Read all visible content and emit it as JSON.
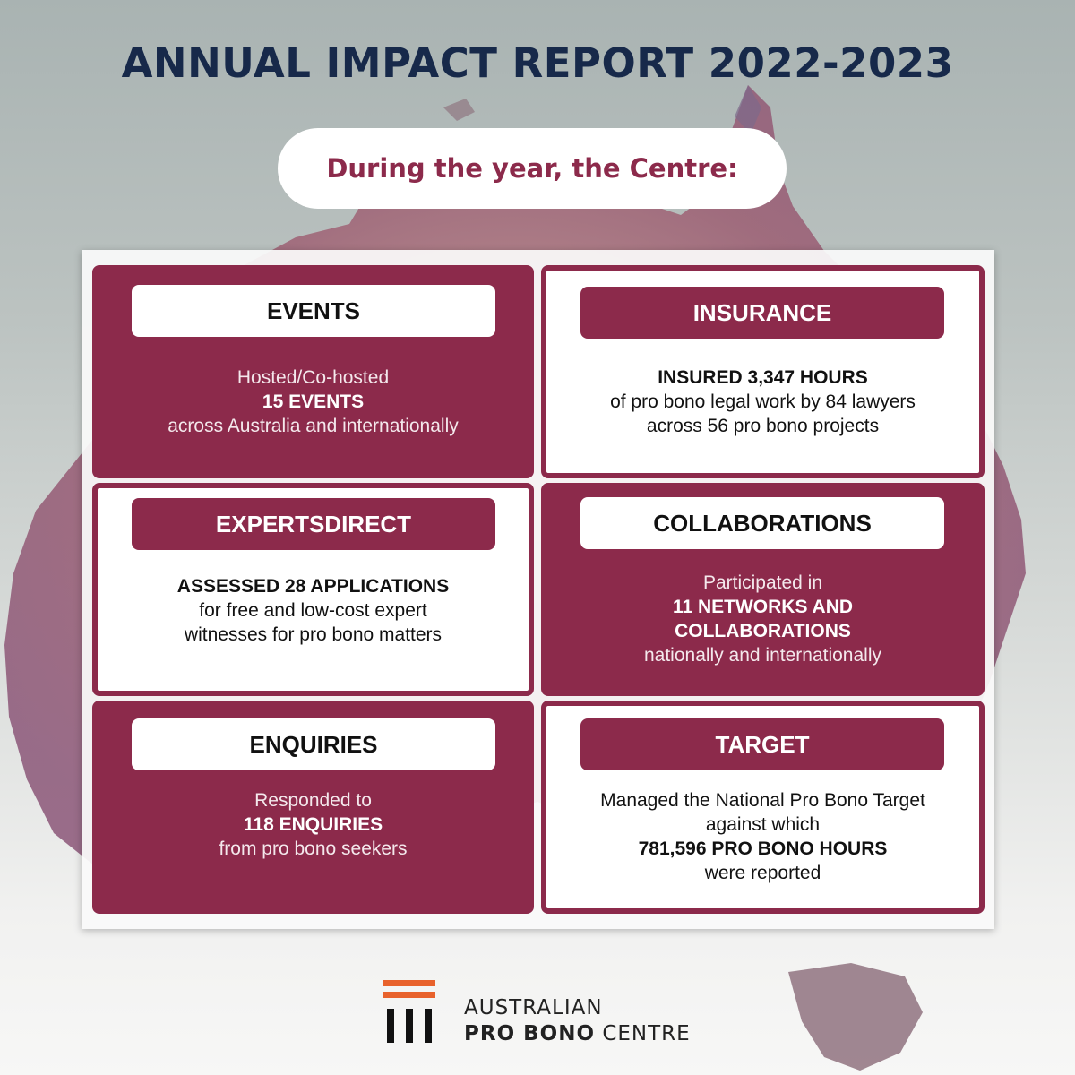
{
  "title": "ANNUAL IMPACT REPORT 2022-2023",
  "subtitle": "During the year, the Centre:",
  "cards": [
    {
      "heading": "EVENTS",
      "line1": "Hosted/Co-hosted",
      "highlight": "15 EVENTS",
      "line2": "across Australia and internationally"
    },
    {
      "heading": "INSURANCE",
      "highlight": "INSURED 3,347 HOURS",
      "line1": "of pro bono legal work by 84 lawyers",
      "line2": "across 56 pro bono projects"
    },
    {
      "heading": "EXPERTSDIRECT",
      "highlight": "ASSESSED 28 APPLICATIONS",
      "line1": "for free and low-cost expert",
      "line2": "witnesses for pro bono matters"
    },
    {
      "heading": "COLLABORATIONS",
      "line1": "Participated in",
      "highlight1": "11 NETWORKS AND",
      "highlight2": "COLLABORATIONS",
      "line2": "nationally and internationally"
    },
    {
      "heading": "ENQUIRIES",
      "line1": "Responded to",
      "highlight": "118 ENQUIRIES",
      "line2": "from pro bono seekers"
    },
    {
      "heading": "TARGET",
      "line1": "Managed the National Pro Bono Target",
      "line2": "against which",
      "highlight": "781,596 PRO BONO HOURS",
      "line3": "were reported"
    }
  ],
  "logo": {
    "line1": "AUSTRALIAN",
    "line2_bold": "PRO BONO",
    "line2_rest": "CENTRE",
    "bar_color": "#e8622c",
    "accent": "#8c2a4b"
  }
}
